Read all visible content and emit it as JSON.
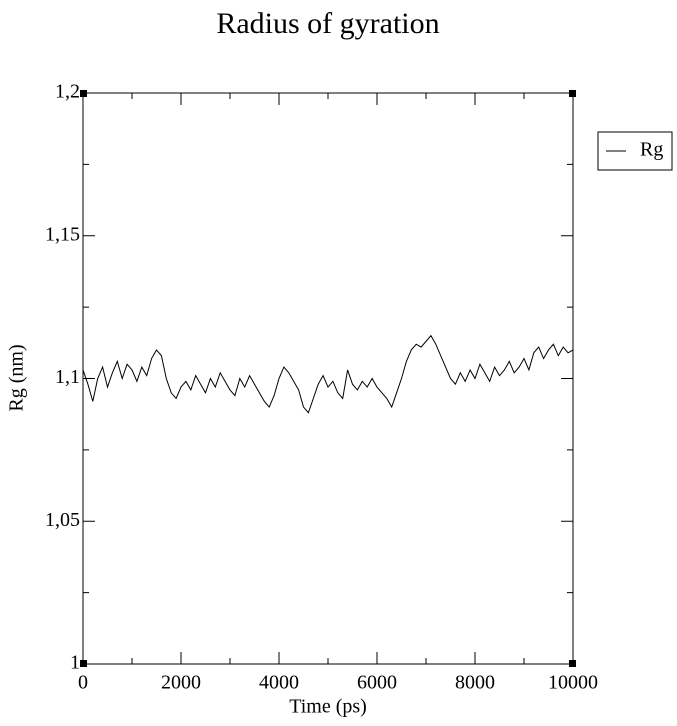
{
  "chart_data": {
    "type": "line",
    "title": "Radius of gyration",
    "x_label": "Time (ps)",
    "y_label": "Rg (nm)",
    "x": [
      0,
      100,
      200,
      300,
      400,
      500,
      600,
      700,
      800,
      900,
      1000,
      1100,
      1200,
      1300,
      1400,
      1500,
      1600,
      1700,
      1800,
      1900,
      2000,
      2100,
      2200,
      2300,
      2400,
      2500,
      2600,
      2700,
      2800,
      2900,
      3000,
      3100,
      3200,
      3300,
      3400,
      3500,
      3600,
      3700,
      3800,
      3900,
      4000,
      4100,
      4200,
      4300,
      4400,
      4500,
      4600,
      4700,
      4800,
      4900,
      5000,
      5100,
      5200,
      5300,
      5400,
      5500,
      5600,
      5700,
      5800,
      5900,
      6000,
      6100,
      6200,
      6300,
      6400,
      6500,
      6600,
      6700,
      6800,
      6900,
      7000,
      7100,
      7200,
      7300,
      7400,
      7500,
      7600,
      7700,
      7800,
      7900,
      8000,
      8100,
      8200,
      8300,
      8400,
      8500,
      8600,
      8700,
      8800,
      8900,
      9000,
      9100,
      9200,
      9300,
      9400,
      9500,
      9600,
      9700,
      9800,
      9900,
      10000
    ],
    "series": [
      {
        "name": "Rg",
        "color": "#000000",
        "values": [
          1.103,
          1.098,
          1.092,
          1.1,
          1.104,
          1.097,
          1.102,
          1.106,
          1.1,
          1.105,
          1.103,
          1.099,
          1.104,
          1.101,
          1.107,
          1.11,
          1.108,
          1.1,
          1.095,
          1.093,
          1.097,
          1.099,
          1.096,
          1.101,
          1.098,
          1.095,
          1.1,
          1.097,
          1.102,
          1.099,
          1.096,
          1.094,
          1.1,
          1.097,
          1.101,
          1.098,
          1.095,
          1.092,
          1.09,
          1.094,
          1.1,
          1.104,
          1.102,
          1.099,
          1.096,
          1.09,
          1.088,
          1.093,
          1.098,
          1.101,
          1.097,
          1.099,
          1.095,
          1.093,
          1.103,
          1.098,
          1.096,
          1.099,
          1.097,
          1.1,
          1.097,
          1.095,
          1.093,
          1.09,
          1.095,
          1.1,
          1.106,
          1.11,
          1.112,
          1.111,
          1.113,
          1.115,
          1.112,
          1.108,
          1.104,
          1.1,
          1.098,
          1.102,
          1.099,
          1.103,
          1.1,
          1.105,
          1.102,
          1.099,
          1.104,
          1.101,
          1.103,
          1.106,
          1.102,
          1.104,
          1.107,
          1.103,
          1.109,
          1.111,
          1.107,
          1.11,
          1.112,
          1.108,
          1.111,
          1.109,
          1.11
        ]
      }
    ],
    "xlim": [
      0,
      10000
    ],
    "xticks": [
      0,
      2000,
      4000,
      6000,
      8000,
      10000
    ],
    "ylim": [
      1,
      1.2
    ],
    "yticks": [
      1,
      {
        "value": 1.05,
        "label": "1,05"
      },
      {
        "value": 1.1,
        "label": "1,1"
      },
      {
        "value": 1.15,
        "label": "1,15"
      },
      {
        "value": 1.2,
        "label": "1,2"
      }
    ],
    "legend": "right"
  }
}
